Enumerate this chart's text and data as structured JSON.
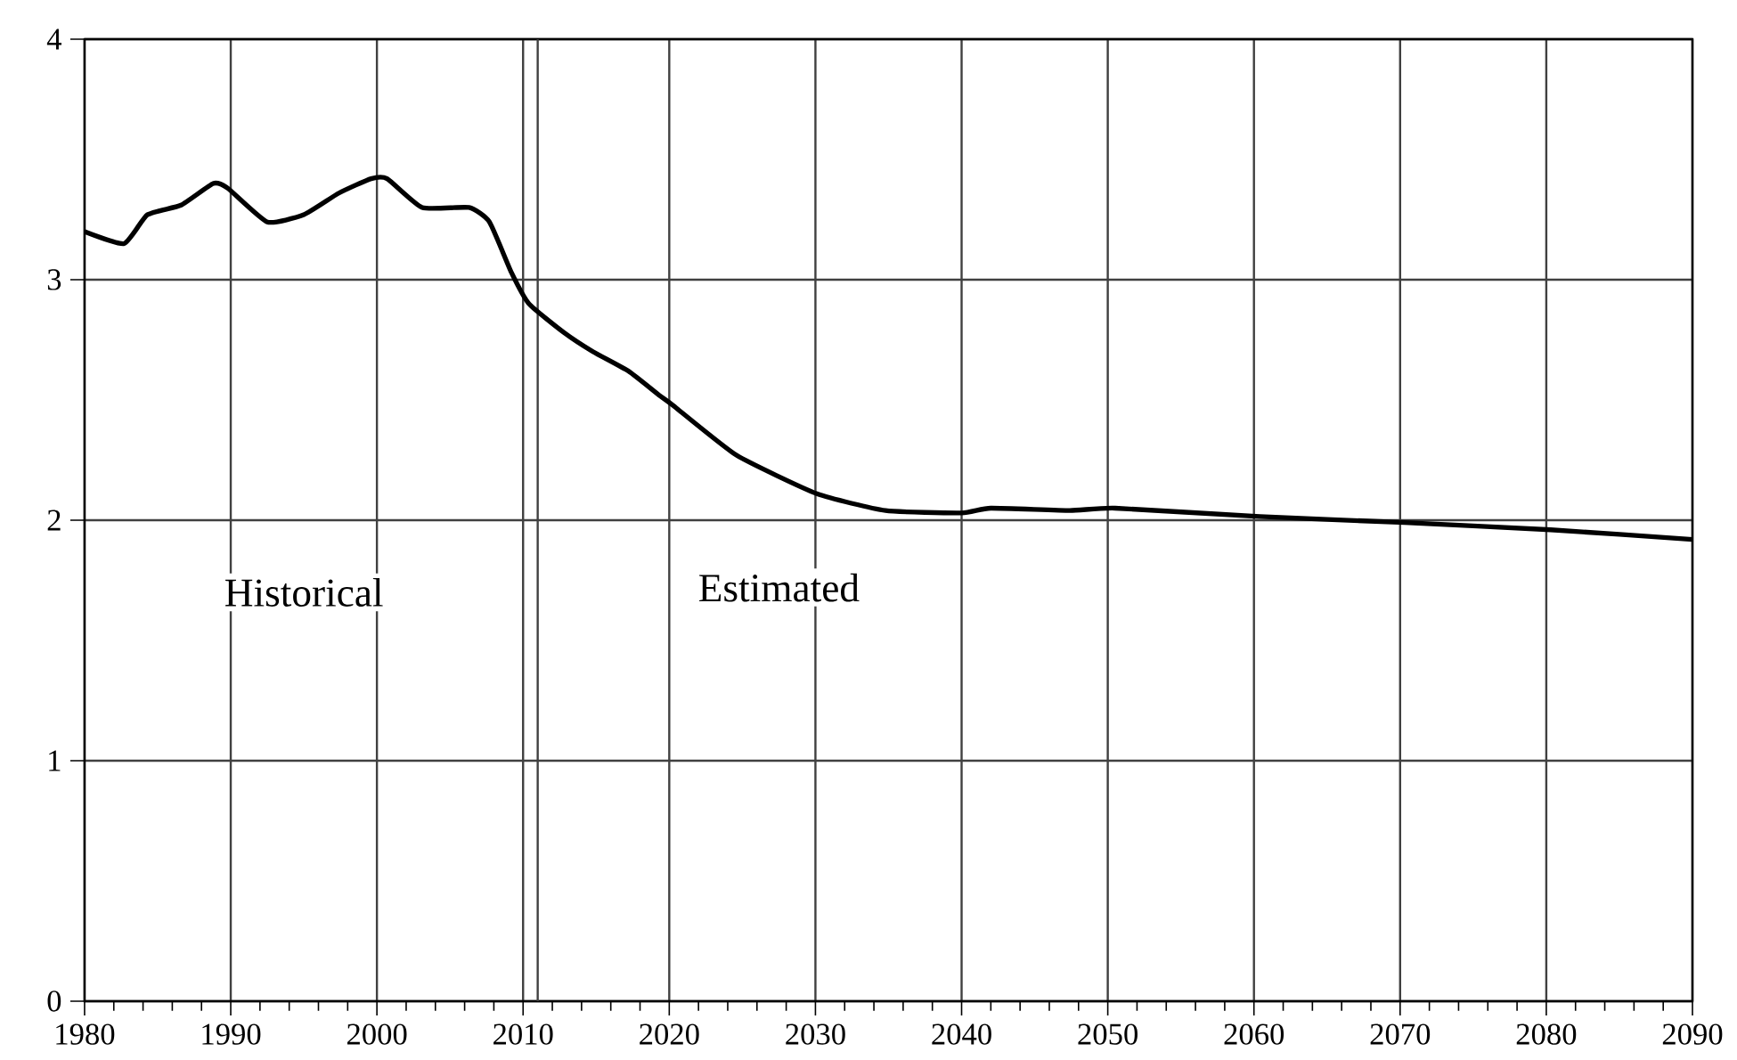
{
  "chart_data": {
    "type": "line",
    "x": [
      1980,
      1982.7,
      1984.3,
      1986.6,
      1988.8,
      1989.8,
      1992.5,
      1995,
      1997.4,
      1999.6,
      2000.7,
      2003.1,
      2006.3,
      2007.7,
      2009.2,
      2010.4,
      2012.8,
      2014.8,
      2017.2,
      2019.3,
      2020.2,
      2024.6,
      2030.1,
      2034.8,
      2040,
      2042,
      2047.4,
      2050.5,
      2060.4,
      2070.3,
      2080.3,
      2090
    ],
    "values": [
      3.2,
      3.15,
      3.27,
      3.31,
      3.4,
      3.38,
      3.24,
      3.27,
      3.36,
      3.42,
      3.42,
      3.3,
      3.3,
      3.24,
      3.03,
      2.9,
      2.78,
      2.7,
      2.62,
      2.52,
      2.48,
      2.27,
      2.11,
      2.04,
      2.03,
      2.05,
      2.04,
      2.05,
      2.015,
      1.99,
      1.96,
      1.92
    ],
    "color": "#000000",
    "xlim": [
      1980,
      2090
    ],
    "xticks": [
      1980,
      1990,
      2000,
      2010,
      2020,
      2030,
      2040,
      2050,
      2060,
      2070,
      2080,
      2090
    ],
    "ylim": [
      0,
      4
    ],
    "yticks": [
      0,
      1,
      2,
      3,
      4
    ],
    "grid": true,
    "ref_lines": [
      {
        "axis": "x",
        "value": 2011
      }
    ],
    "annotations": [
      "Historical",
      "Estimated"
    ]
  }
}
